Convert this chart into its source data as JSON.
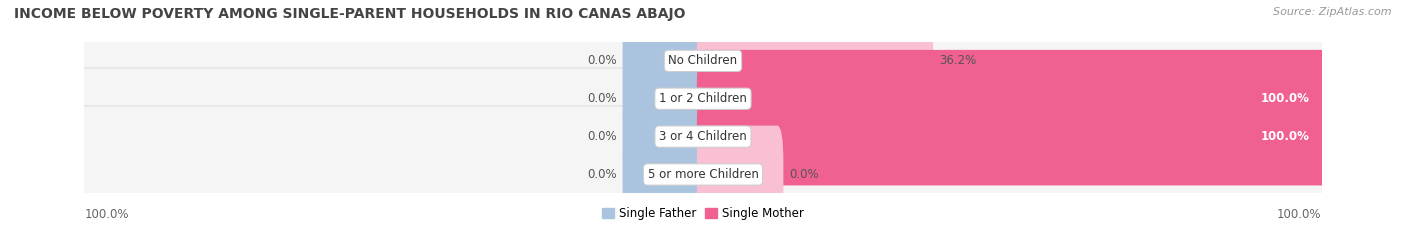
{
  "title": "INCOME BELOW POVERTY AMONG SINGLE-PARENT HOUSEHOLDS IN RIO CANAS ABAJO",
  "source": "Source: ZipAtlas.com",
  "categories": [
    "No Children",
    "1 or 2 Children",
    "3 or 4 Children",
    "5 or more Children"
  ],
  "single_father": [
    0.0,
    0.0,
    0.0,
    0.0
  ],
  "single_mother": [
    36.2,
    100.0,
    100.0,
    0.0
  ],
  "father_color": "#aac4e0",
  "mother_color": "#f06090",
  "mother_color_light": "#f9c0d4",
  "title_fontsize": 10,
  "source_fontsize": 8,
  "label_fontsize": 8.5,
  "category_fontsize": 8.5,
  "legend_father": "Single Father",
  "legend_mother": "Single Mother",
  "x_axis_left_label": "100.0%",
  "x_axis_right_label": "100.0%",
  "row_bg_even": "#f0f0f0",
  "row_bg_odd": "#e8e8e8",
  "bar_bg_color": "#f5f5f5",
  "bar_outline_color": "#d0d0d0"
}
